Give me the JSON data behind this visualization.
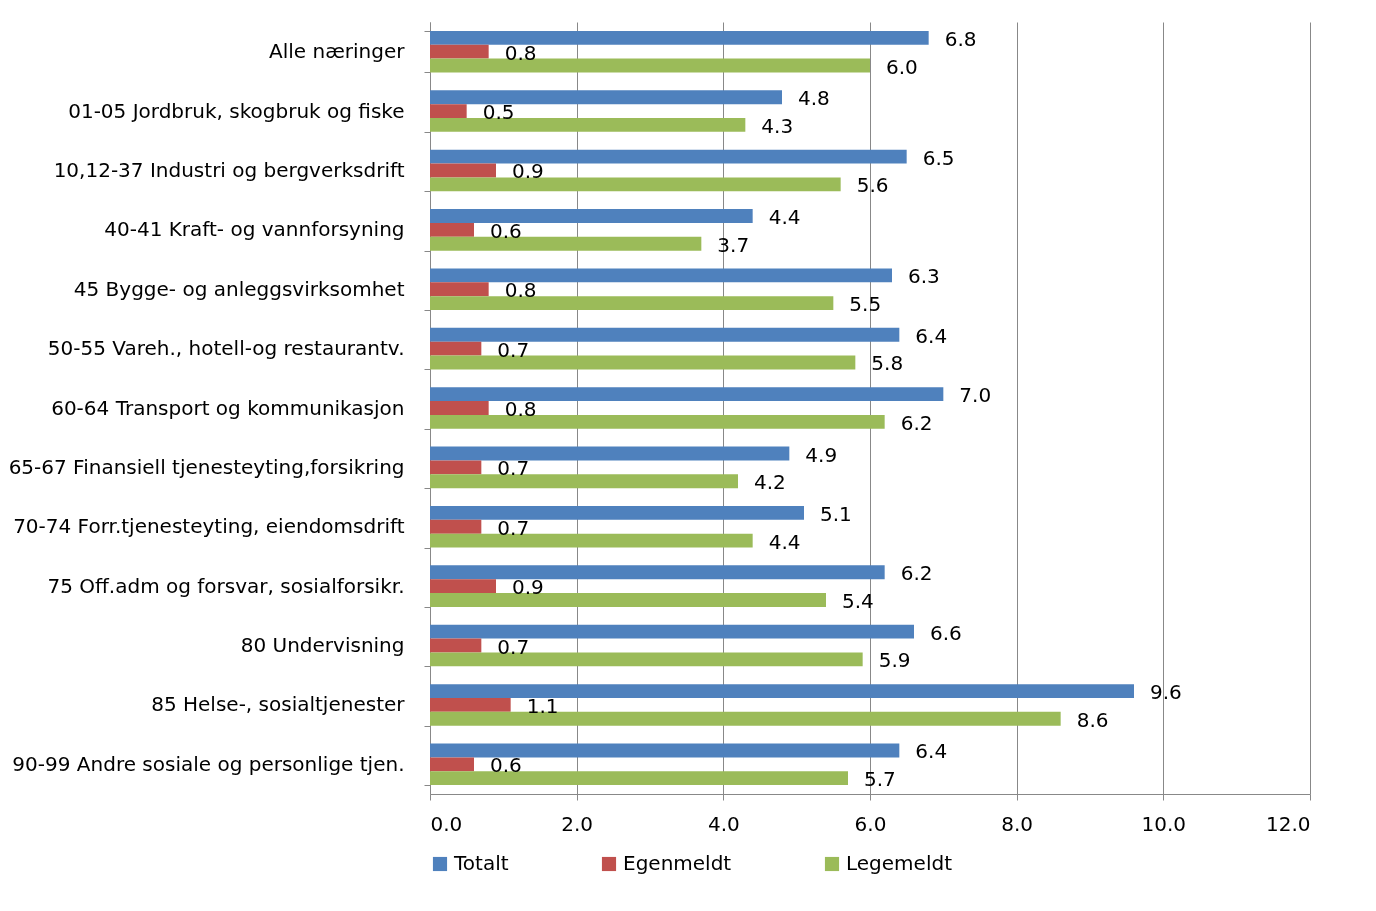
{
  "chart_data": {
    "type": "bar",
    "orientation": "horizontal",
    "categories": [
      "Alle næringer",
      "01-05 Jordbruk, skogbruk og fiske",
      "10,12-37 Industri og bergverksdrift",
      "40-41 Kraft- og vannforsyning",
      "45 Bygge- og anleggsvirksomhet",
      "50-55 Vareh., hotell-og restaurantv.",
      "60-64 Transport og kommunikasjon",
      "65-67 Finansiell tjenesteyting,forsikring",
      "70-74 Forr.tjenesteyting, eiendomsdrift",
      "75 Off.adm og forsvar, sosialforsikr.",
      "80 Undervisning",
      "85 Helse-, sosialtjenester",
      "90-99 Andre sosiale og personlige tjen."
    ],
    "series": [
      {
        "name": "Totalt",
        "color": "#4f81bd",
        "values": [
          6.8,
          4.8,
          6.5,
          4.4,
          6.3,
          6.4,
          7.0,
          4.9,
          5.1,
          6.2,
          6.6,
          9.6,
          6.4
        ],
        "value_labels": [
          "6.8",
          "4.8",
          "6.5",
          "4.4",
          "6.3",
          "6.4",
          "7.0",
          "4.9",
          "5.1",
          "6.2",
          "6.6",
          "9.6",
          "6.4"
        ]
      },
      {
        "name": "Egenmeldt",
        "color": "#c0504d",
        "values": [
          0.8,
          0.5,
          0.9,
          0.6,
          0.8,
          0.7,
          0.8,
          0.7,
          0.7,
          0.9,
          0.7,
          1.1,
          0.6
        ],
        "value_labels": [
          "0.8",
          "0.5",
          "0.9",
          "0.6",
          "0.8",
          "0.7",
          "0.8",
          "0.7",
          "0.7",
          "0.9",
          "0.7",
          "1.1",
          "0.6"
        ]
      },
      {
        "name": "Legemeldt",
        "color": "#9bbb59",
        "values": [
          6.0,
          4.3,
          5.6,
          3.7,
          5.5,
          5.8,
          6.2,
          4.2,
          4.4,
          5.4,
          5.9,
          8.6,
          5.7
        ],
        "value_labels": [
          "6.0",
          "4.3",
          "5.6",
          "3.7",
          "5.5",
          "5.8",
          "6.2",
          "4.2",
          "4.4",
          "5.4",
          "5.9",
          "8.6",
          "5.7"
        ]
      }
    ],
    "xlim": [
      0,
      12
    ],
    "xticks": [
      {
        "value": 0,
        "label": "0.0"
      },
      {
        "value": 2,
        "label": "2.0"
      },
      {
        "value": 4,
        "label": "4.0"
      },
      {
        "value": 6,
        "label": "6.0"
      },
      {
        "value": 8,
        "label": "8.0"
      },
      {
        "value": 10,
        "label": "10.0"
      },
      {
        "value": 12,
        "label": "12.0"
      }
    ],
    "grid": "x",
    "legend": "bottom"
  }
}
